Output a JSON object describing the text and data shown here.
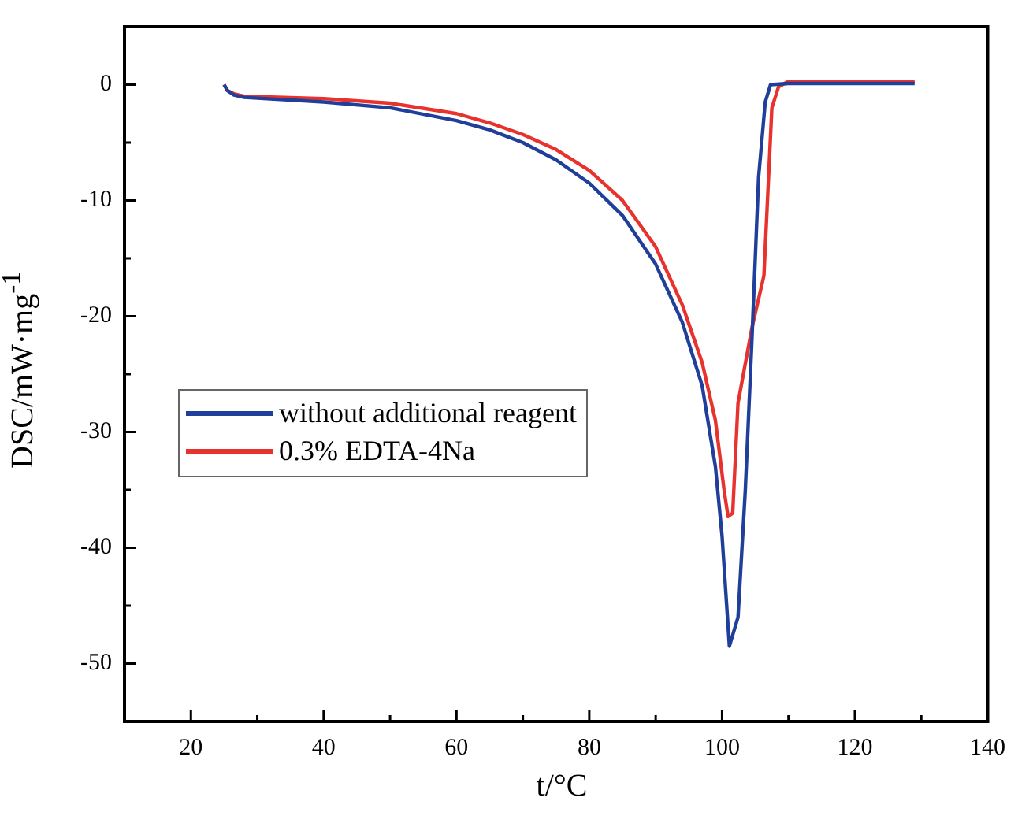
{
  "chart_data": {
    "type": "line",
    "xlabel": "t/°C",
    "ylabel": "DSC/mW·mg$^{-1}$",
    "xlim": [
      10,
      140
    ],
    "ylim": [
      -55,
      5
    ],
    "xticks": [
      20,
      {
        "value": 30,
        "label": null
      },
      40,
      {
        "value": 50,
        "label": null
      },
      60,
      {
        "value": 70,
        "label": null
      },
      80,
      {
        "value": 90,
        "label": null
      },
      100,
      {
        "value": 110,
        "label": null
      },
      120,
      {
        "value": 130,
        "label": null
      },
      140
    ],
    "yticks": [
      {
        "value": -55,
        "label": null
      },
      -50,
      {
        "value": -45,
        "label": null
      },
      -40,
      {
        "value": -35,
        "label": null
      },
      -30,
      {
        "value": -25,
        "label": null
      },
      -20,
      {
        "value": -15,
        "label": null
      },
      -10,
      {
        "value": -5,
        "label": null
      },
      0,
      {
        "value": 5,
        "label": null
      }
    ],
    "grid": false,
    "legend": "center left",
    "marker": "none",
    "line_style": "solid",
    "series": [
      {
        "name": "without additional reagent",
        "color": "#1f3f9a",
        "x": [
          25,
          25.5,
          26.5,
          28,
          40,
          50,
          60,
          65,
          70,
          75,
          80,
          85,
          90,
          94,
          97,
          99,
          100,
          101.1,
          102.4,
          103.5,
          104.5,
          105.5,
          106.5,
          107.3,
          110,
          129
        ],
        "values": [
          0,
          -0.5,
          -0.9,
          -1.1,
          -1.5,
          -2,
          -3.1,
          -3.9,
          -5,
          -6.5,
          -8.5,
          -11.3,
          -15.5,
          -20.5,
          -26,
          -33,
          -39,
          -48.5,
          -46,
          -35,
          -22,
          -8,
          -1.5,
          0,
          0.1,
          0.1
        ]
      },
      {
        "name": "0.3% EDTA-4Na",
        "color": "#e8322d",
        "x": [
          25,
          25.5,
          26.5,
          28,
          40,
          50,
          60,
          65,
          70,
          75,
          80,
          85,
          90,
          94,
          97,
          99,
          100.3,
          100.9,
          101.6,
          102.4,
          104.5,
          106.3,
          107.5,
          108.5,
          110,
          129
        ],
        "values": [
          0,
          -0.5,
          -0.8,
          -1,
          -1.2,
          -1.6,
          -2.5,
          -3.3,
          -4.3,
          -5.6,
          -7.4,
          -10,
          -14,
          -19,
          -24,
          -29,
          -35,
          -37.3,
          -37,
          -27.5,
          -21,
          -16.5,
          -2,
          -0.2,
          0.3,
          0.3
        ]
      }
    ]
  }
}
